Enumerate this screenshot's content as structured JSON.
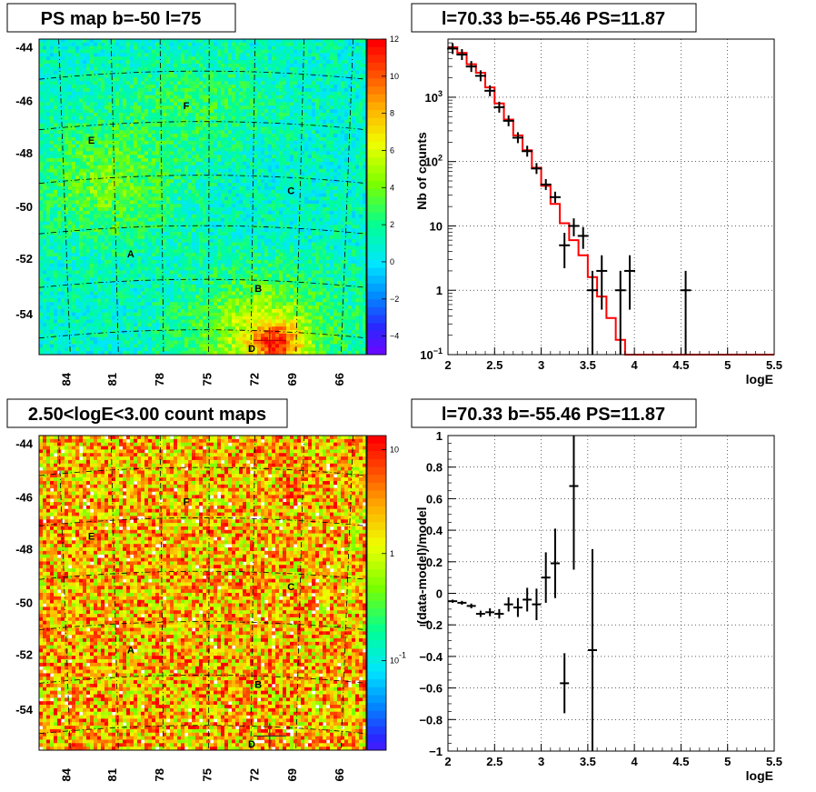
{
  "colors": {
    "data": "#000000",
    "model": "#ff0000",
    "grid": "#000000",
    "background": "#ffffff"
  },
  "chart_data": [
    {
      "type": "heatmap",
      "title": "PS map b=-50 l=75",
      "y_ticks": [
        "-44",
        "-46",
        "-48",
        "-50",
        "-52",
        "-54"
      ],
      "x_ticks": [
        "84",
        "81",
        "78",
        "75",
        "72",
        "69",
        "66"
      ],
      "colorbar_ticks": [
        "12",
        "10",
        "8",
        "6",
        "4",
        "2",
        "0",
        "-2",
        "-4"
      ],
      "zlim": [
        -5,
        12
      ],
      "scale": "linear",
      "marks": [
        "F",
        "E",
        "C",
        "A",
        "B",
        "D"
      ],
      "peak": {
        "l": 70.33,
        "b": -55.46,
        "value": 11.87
      }
    },
    {
      "type": "line",
      "title": "l=70.33 b=-55.46 PS=11.87",
      "xlabel": "logE",
      "ylabel": "Nb of counts",
      "xlim": [
        2,
        5.5
      ],
      "ylim": [
        0.1,
        8000
      ],
      "ylog": true,
      "grid": true,
      "x_ticks": [
        "2",
        "2.5",
        "3",
        "3.5",
        "4",
        "4.5",
        "5",
        "5.5"
      ],
      "y_ticks": [
        {
          "value": 0.1,
          "label": "10",
          "sup": "−1"
        },
        {
          "value": 1,
          "label": "1",
          "sup": ""
        },
        {
          "value": 10,
          "label": "10",
          "sup": ""
        },
        {
          "value": 100,
          "label": "10",
          "sup": "2"
        },
        {
          "value": 1000,
          "label": "10",
          "sup": "3"
        }
      ],
      "series": [
        {
          "kind": "points_with_errors",
          "x": [
            2.05,
            2.15,
            2.25,
            2.35,
            2.45,
            2.55,
            2.65,
            2.75,
            2.85,
            2.95,
            3.05,
            3.15,
            3.25,
            3.35,
            3.45,
            3.55,
            3.65,
            3.85,
            3.95,
            4.55
          ],
          "y": [
            5700,
            4600,
            3000,
            2150,
            1260,
            700,
            430,
            235,
            145,
            78,
            44,
            28,
            5,
            10,
            7,
            1,
            2,
            1,
            2,
            1
          ],
          "err_lo": [
            75,
            68,
            55,
            46,
            35,
            26,
            21,
            15,
            12,
            9,
            6.5,
            5.2,
            2.8,
            3.1,
            2.6,
            0.9,
            1.5,
            0.9,
            1.5,
            0.9
          ],
          "err_hi": [
            75,
            68,
            55,
            46,
            35,
            26,
            21,
            15,
            12,
            9,
            6.5,
            5.2,
            2.8,
            3.1,
            2.6,
            1.0,
            1.5,
            1.0,
            1.5,
            1.0
          ]
        },
        {
          "kind": "step",
          "edges": [
            2.0,
            2.1,
            2.2,
            2.3,
            2.4,
            2.5,
            2.6,
            2.7,
            2.8,
            2.9,
            3.0,
            3.1,
            3.2,
            3.3,
            3.4,
            3.5,
            3.6,
            3.7,
            3.8,
            3.9,
            4.0,
            5.5
          ],
          "values": [
            6000,
            4900,
            3250,
            2400,
            1420,
            800,
            450,
            255,
            150,
            80,
            42,
            22,
            11,
            6,
            3.5,
            1.6,
            0.8,
            0.37,
            0.17,
            0.1,
            0.1
          ]
        }
      ]
    },
    {
      "type": "heatmap",
      "title": "2.50<logE<3.00 count maps",
      "y_ticks": [
        "-44",
        "-46",
        "-48",
        "-50",
        "-52",
        "-54"
      ],
      "x_ticks": [
        "84",
        "81",
        "78",
        "75",
        "72",
        "69",
        "66"
      ],
      "colorbar_ticks": [
        {
          "label": "10",
          "sup": ""
        },
        {
          "label": "1",
          "sup": ""
        },
        {
          "label": "10",
          "sup": "-1"
        }
      ],
      "scale": "log",
      "marks": [
        "F",
        "E",
        "C",
        "A",
        "B",
        "D"
      ]
    },
    {
      "type": "scatter",
      "title": "l=70.33 b=-55.46 PS=11.87",
      "xlabel": "logE",
      "ylabel": "(data-model)/model",
      "xlim": [
        2,
        5.5
      ],
      "ylim": [
        -1,
        1
      ],
      "grid": true,
      "x_ticks": [
        "2",
        "2.5",
        "3",
        "3.5",
        "4",
        "4.5",
        "5",
        "5.5"
      ],
      "y_ticks": [
        "1",
        "0.8",
        "0.6",
        "0.4",
        "0.2",
        "0",
        "-0.2",
        "-0.4",
        "-0.6",
        "-0.8",
        "-1"
      ],
      "series": [
        {
          "kind": "points_with_errors",
          "x": [
            2.05,
            2.15,
            2.25,
            2.35,
            2.45,
            2.55,
            2.65,
            2.75,
            2.85,
            2.95,
            3.05,
            3.15,
            3.25,
            3.35,
            3.55
          ],
          "y": [
            -0.05,
            -0.06,
            -0.08,
            -0.13,
            -0.12,
            -0.13,
            -0.07,
            -0.09,
            -0.04,
            -0.07,
            0.1,
            0.19,
            -0.57,
            0.68,
            -0.36
          ],
          "err": [
            0.01,
            0.012,
            0.015,
            0.02,
            0.025,
            0.03,
            0.045,
            0.06,
            0.075,
            0.1,
            0.16,
            0.22,
            0.19,
            0.53,
            0.64
          ]
        }
      ]
    }
  ]
}
